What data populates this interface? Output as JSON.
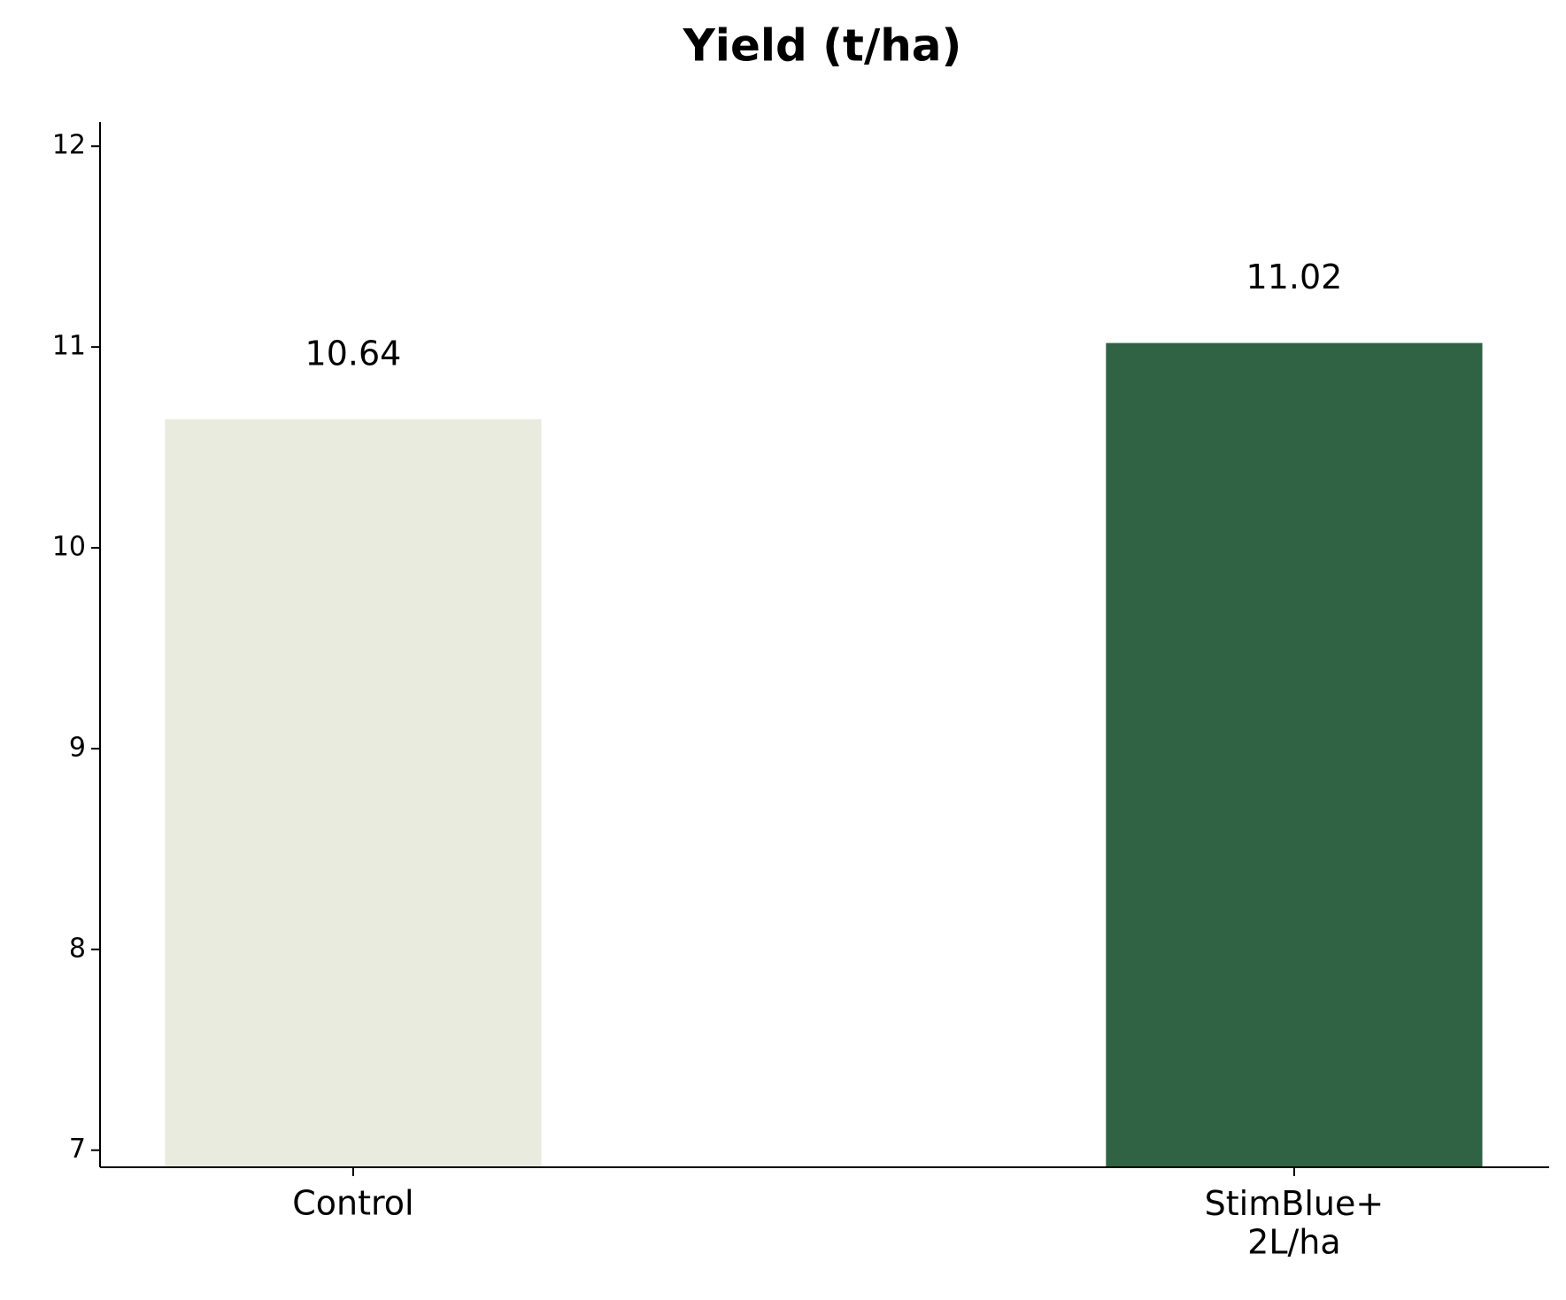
{
  "chart_data": {
    "type": "bar",
    "title": "Yield (t/ha)",
    "categories": [
      "Control",
      "StimBlue+\n2L/ha"
    ],
    "values": [
      10.64,
      11.02
    ],
    "colors": [
      "#eaebdf",
      "#306343"
    ],
    "ylim": [
      6.915,
      12.12
    ],
    "yticks": [
      7,
      8,
      9,
      10,
      11,
      12
    ],
    "grid": false
  }
}
